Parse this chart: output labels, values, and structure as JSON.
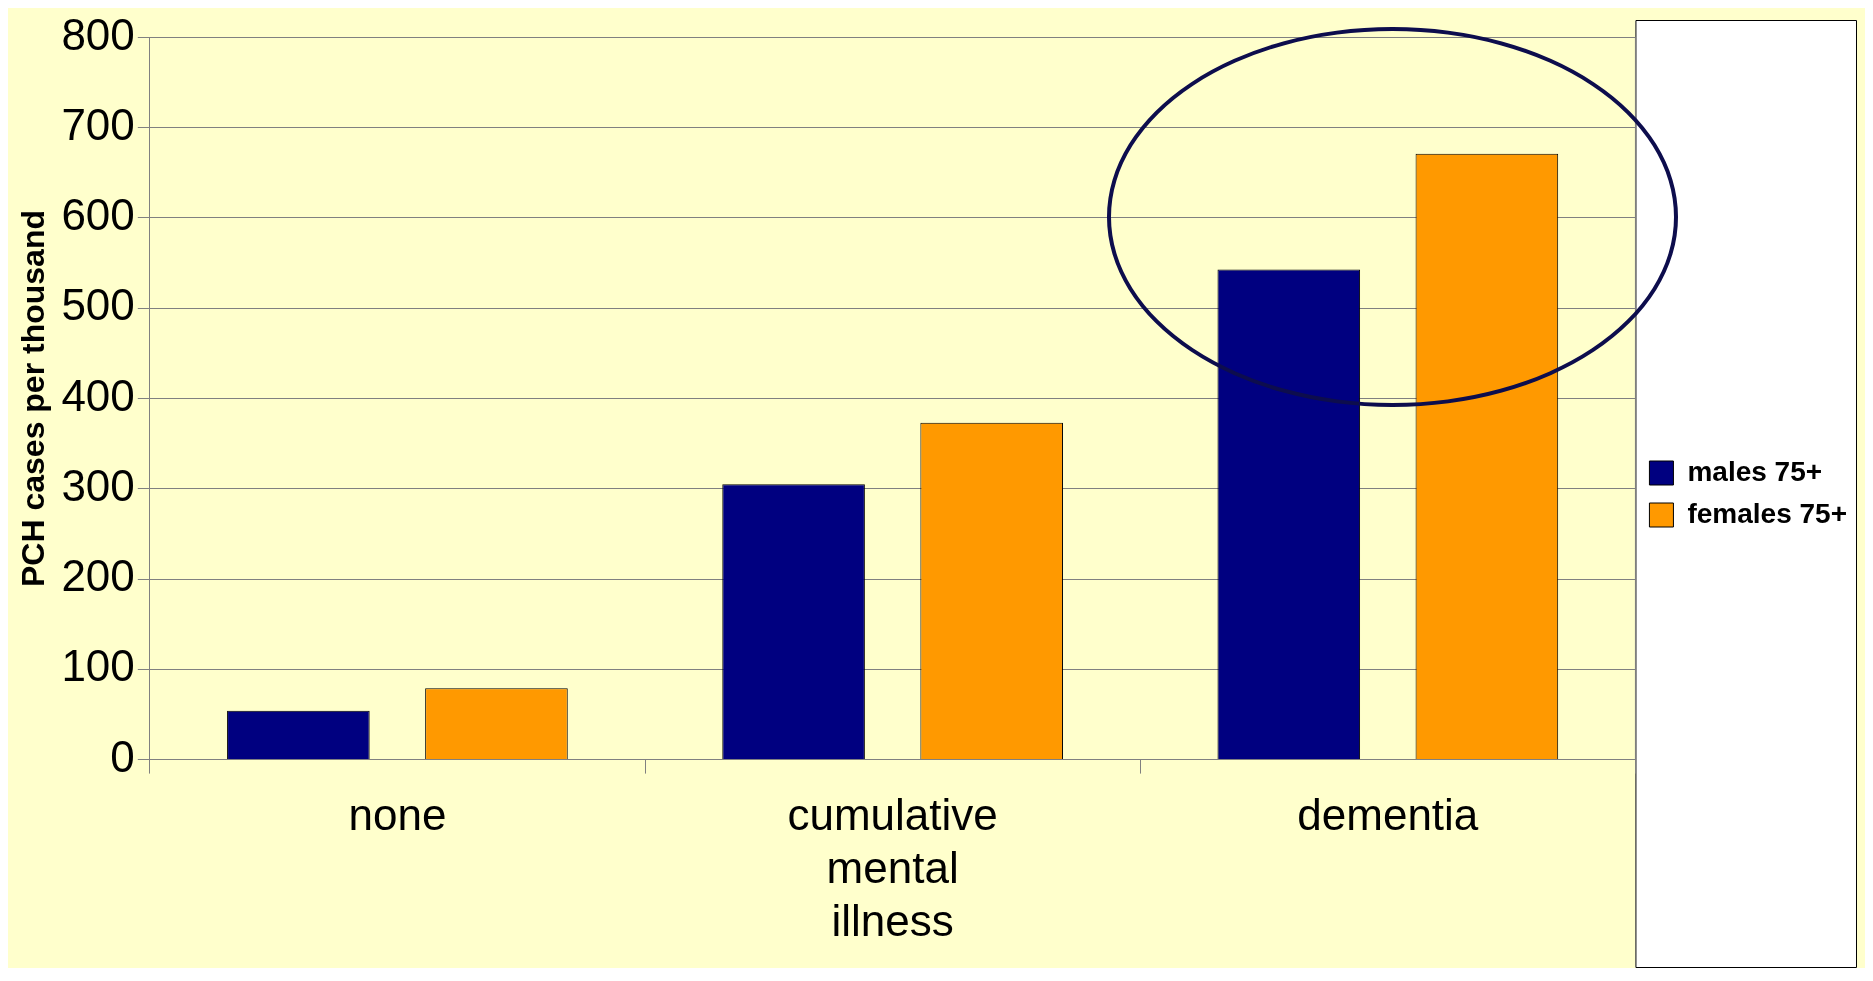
{
  "chart_data": {
    "type": "bar",
    "ylabel": "PCH cases per thousand",
    "categories": [
      "none",
      "cumulative mental illness",
      "dementia"
    ],
    "series": [
      {
        "name": "males 75+",
        "color": "#000080",
        "values": [
          54,
          305,
          543
        ]
      },
      {
        "name": "females 75+",
        "color": "#ff9900",
        "values": [
          79,
          373,
          671
        ]
      }
    ],
    "ylim": [
      0,
      800
    ],
    "yticks": [
      0,
      100,
      200,
      300,
      400,
      500,
      600,
      700,
      800
    ],
    "grid": "y",
    "legend": "right"
  }
}
